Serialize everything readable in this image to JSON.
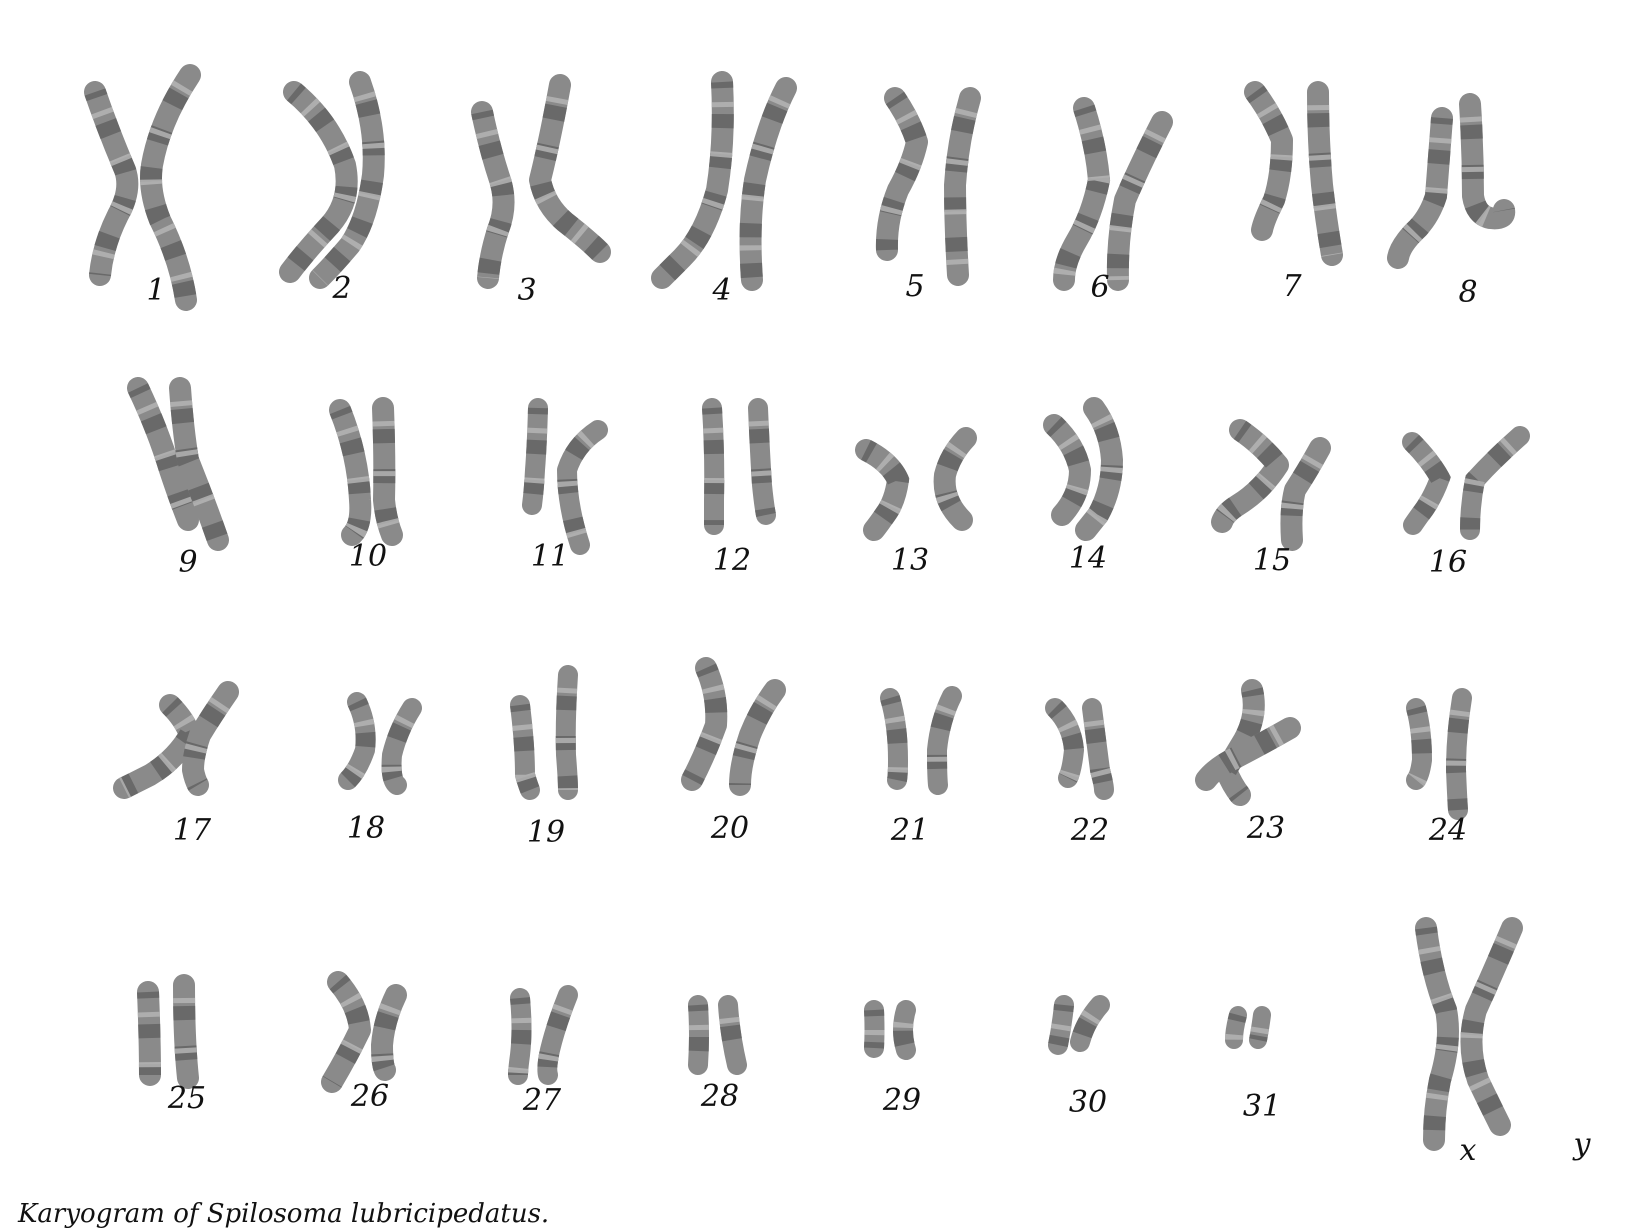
{
  "caption": "Karyogram of Spilosoma lubricipedatus.",
  "colors": {
    "chromatid": "#8a8a8a",
    "band_dark": "#5e5e5e",
    "band_light": "#b4b4b4",
    "text": "#111111"
  },
  "chromosomes": [
    {
      "label": "1"
    },
    {
      "label": "2"
    },
    {
      "label": "3"
    },
    {
      "label": "4"
    },
    {
      "label": "5"
    },
    {
      "label": "6"
    },
    {
      "label": "7"
    },
    {
      "label": "8"
    },
    {
      "label": "9"
    },
    {
      "label": "10"
    },
    {
      "label": "11"
    },
    {
      "label": "12"
    },
    {
      "label": "13"
    },
    {
      "label": "14"
    },
    {
      "label": "15"
    },
    {
      "label": "16"
    },
    {
      "label": "17"
    },
    {
      "label": "18"
    },
    {
      "label": "19"
    },
    {
      "label": "20"
    },
    {
      "label": "21"
    },
    {
      "label": "22"
    },
    {
      "label": "23"
    },
    {
      "label": "24"
    },
    {
      "label": "25"
    },
    {
      "label": "26"
    },
    {
      "label": "27"
    },
    {
      "label": "28"
    },
    {
      "label": "29"
    },
    {
      "label": "30"
    },
    {
      "label": "31"
    },
    {
      "label": "x"
    },
    {
      "label": "y"
    }
  ]
}
